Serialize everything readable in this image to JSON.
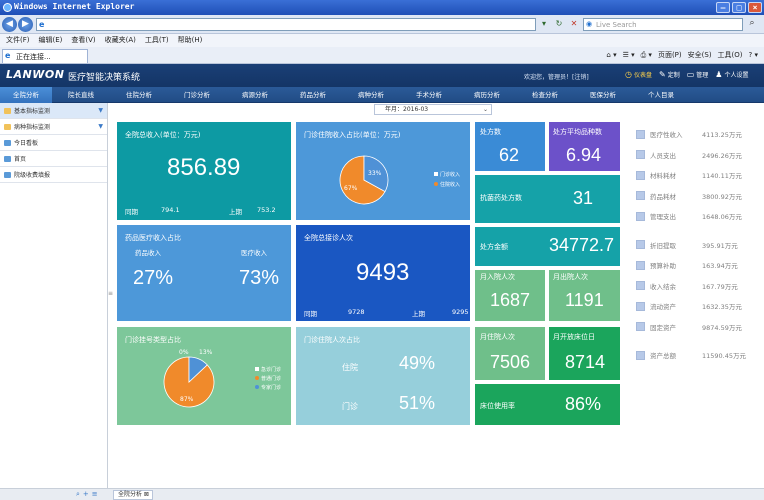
{
  "browser": {
    "title": "Windows Internet Explorer",
    "search_placeholder": "Live Search",
    "menu": [
      "文件(F)",
      "编辑(E)",
      "查看(V)",
      "收藏夹(A)",
      "工具(T)",
      "帮助(H)"
    ],
    "tab_label": "正在连接...",
    "commands": [
      "页面(P)",
      "安全(S)",
      "工具(O)"
    ]
  },
  "app": {
    "brand": "LANWON",
    "subtitle": "医疗智能决策系统",
    "welcome": "欢迎您，管理员！[注销]",
    "tools": [
      "仪表盘",
      "定制",
      "管理",
      "个人设置"
    ],
    "nav": [
      "全院分析",
      "院长直线",
      "住院分析",
      "门诊分析",
      "病源分析",
      "药品分析",
      "病种分析",
      "手术分析",
      "病历分析",
      "检查分析",
      "医保分析",
      "个人目录"
    ]
  },
  "sidebar": {
    "items": [
      "基本指标监测",
      "病种指标监测",
      "今日看板",
      "首页",
      "院级收费填报"
    ]
  },
  "date": {
    "label": "年月：",
    "value": "2016-03"
  },
  "tiles": {
    "revenue": {
      "title": "全院总收入(单位：万元)",
      "value": "856.89",
      "prev_label": "同期",
      "prev": "794.1",
      "last_label": "上期",
      "last": "753.2"
    },
    "opd_ipd": {
      "title": "门诊住院收入占比(单位：万元)",
      "legend": [
        "门诊收入",
        "住院收入"
      ],
      "pct_outpatient": "33%",
      "pct_inpatient": "67%",
      "share_outpatient": 0.33
    },
    "rx_count": {
      "title": "处方数",
      "value": "62"
    },
    "rx_avg": {
      "title": "处方平均品种数",
      "value": "6.94"
    },
    "antibiotic": {
      "title": "抗菌药处方数",
      "value": "31"
    },
    "drug_ratio": {
      "title": "药品医疗收入占比",
      "drug_label": "药品收入",
      "drug": "27%",
      "medical_label": "医疗收入",
      "medical": "73%"
    },
    "visits": {
      "title": "全院总接诊人次",
      "value": "9493",
      "prev_label": "同期",
      "prev": "9728",
      "last_label": "上期",
      "last": "9295"
    },
    "rx_amount": {
      "title": "处方金额",
      "value": "34772.7"
    },
    "adm_month": {
      "title": "月入院人次",
      "value": "1687"
    },
    "dis_month": {
      "title": "月出院人次",
      "value": "1191"
    },
    "reg_type": {
      "title": "门诊挂号类型占比",
      "legend": [
        "急诊门诊",
        "普通门诊",
        "专家门诊"
      ],
      "pct_a": "0%",
      "pct_b": "13%",
      "pct_c": "87%",
      "share_general": 0.87,
      "share_expert": 0.13
    },
    "ipd_ratio": {
      "title": "门诊住院人次占比",
      "inp_label": "住院",
      "inp": "49%",
      "opd_label": "门诊",
      "opd": "51%"
    },
    "inpatients": {
      "title": "月住院人次",
      "value": "7506"
    },
    "bed_days": {
      "title": "月开放床位日",
      "value": "8714"
    },
    "bed_use": {
      "title": "床位使用率",
      "value": "86%"
    }
  },
  "kpis": [
    {
      "label": "医疗性收入",
      "value": "4113.25万元"
    },
    {
      "label": "人员支出",
      "value": "2496.26万元"
    },
    {
      "label": "材料耗材",
      "value": "1140.11万元"
    },
    {
      "label": "药品耗材",
      "value": "3800.92万元"
    },
    {
      "label": "管理支出",
      "value": "1648.06万元"
    },
    {
      "label": "折旧提取",
      "value": "395.91万元"
    },
    {
      "label": "预算补助",
      "value": "163.94万元"
    },
    {
      "label": "收入结余",
      "value": "167.79万元"
    },
    {
      "label": "流动资产",
      "value": "1632.35万元"
    },
    {
      "label": "固定资产",
      "value": "9874.59万元"
    },
    {
      "label": "资产总额",
      "value": "11590.45万元"
    }
  ],
  "bottom": {
    "tab": "全院分析"
  },
  "colors": {
    "header": "#1a3f76",
    "nav": "#2b5a98",
    "orange": "#f08a2b",
    "pie_blue": "#4f91d6"
  }
}
